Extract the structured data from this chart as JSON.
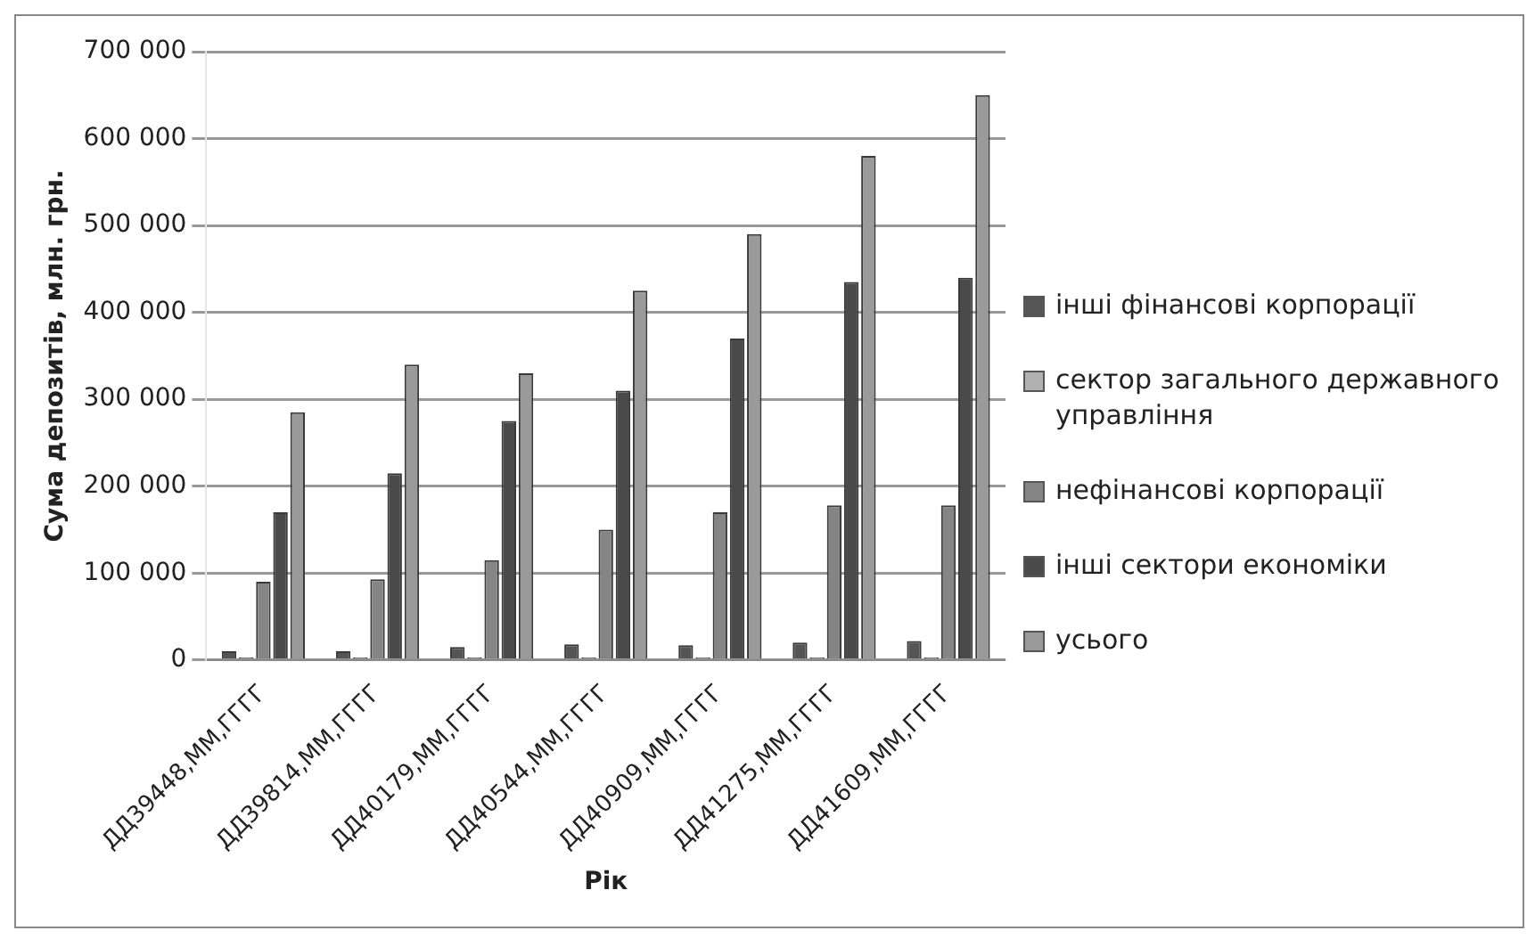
{
  "chart_data": {
    "type": "bar",
    "xlabel": "Рік",
    "ylabel": "Сума депозитів, млн. грн.",
    "categories": [
      "ДД39448,ММ,ГГГГ",
      "ДД39814,ММ,ГГГГ",
      "ДД40179,ММ,ГГГГ",
      "ДД40544,ММ,ГГГГ",
      "ДД40909,ММ,ГГГГ",
      "ДД41275,ММ,ГГГГ",
      "ДД41609,ММ,ГГГГ"
    ],
    "series": [
      {
        "name": "інші фінансові корпорації",
        "color": "#555555",
        "values": [
          10000,
          10000,
          15000,
          18000,
          17000,
          20000,
          22000
        ]
      },
      {
        "name": "сектор загального державного управління",
        "color": "#b0b0b0",
        "values": [
          3000,
          3000,
          3000,
          3000,
          3000,
          3000,
          3000
        ]
      },
      {
        "name": "нефінансові корпорації",
        "color": "#858585",
        "values": [
          90000,
          93000,
          115000,
          150000,
          170000,
          178000,
          178000
        ]
      },
      {
        "name": "інші сектори економіки",
        "color": "#4a4a4a",
        "values": [
          170000,
          215000,
          275000,
          310000,
          370000,
          435000,
          440000
        ]
      },
      {
        "name": "усього",
        "color": "#9a9a9a",
        "values": [
          285000,
          340000,
          330000,
          425000,
          490000,
          580000,
          650000
        ]
      }
    ],
    "ylim": [
      0,
      700000
    ],
    "yticks": [
      0,
      {
        "value": 100000,
        "label": "100 000"
      },
      {
        "value": 200000,
        "label": "200 000"
      },
      {
        "value": 300000,
        "label": "300 000"
      },
      {
        "value": 400000,
        "label": "400 000"
      },
      {
        "value": 500000,
        "label": "500 000"
      },
      {
        "value": 600000,
        "label": "600 000"
      },
      {
        "value": 700000,
        "label": "700 000"
      }
    ],
    "grid": "y",
    "legend": "right"
  }
}
